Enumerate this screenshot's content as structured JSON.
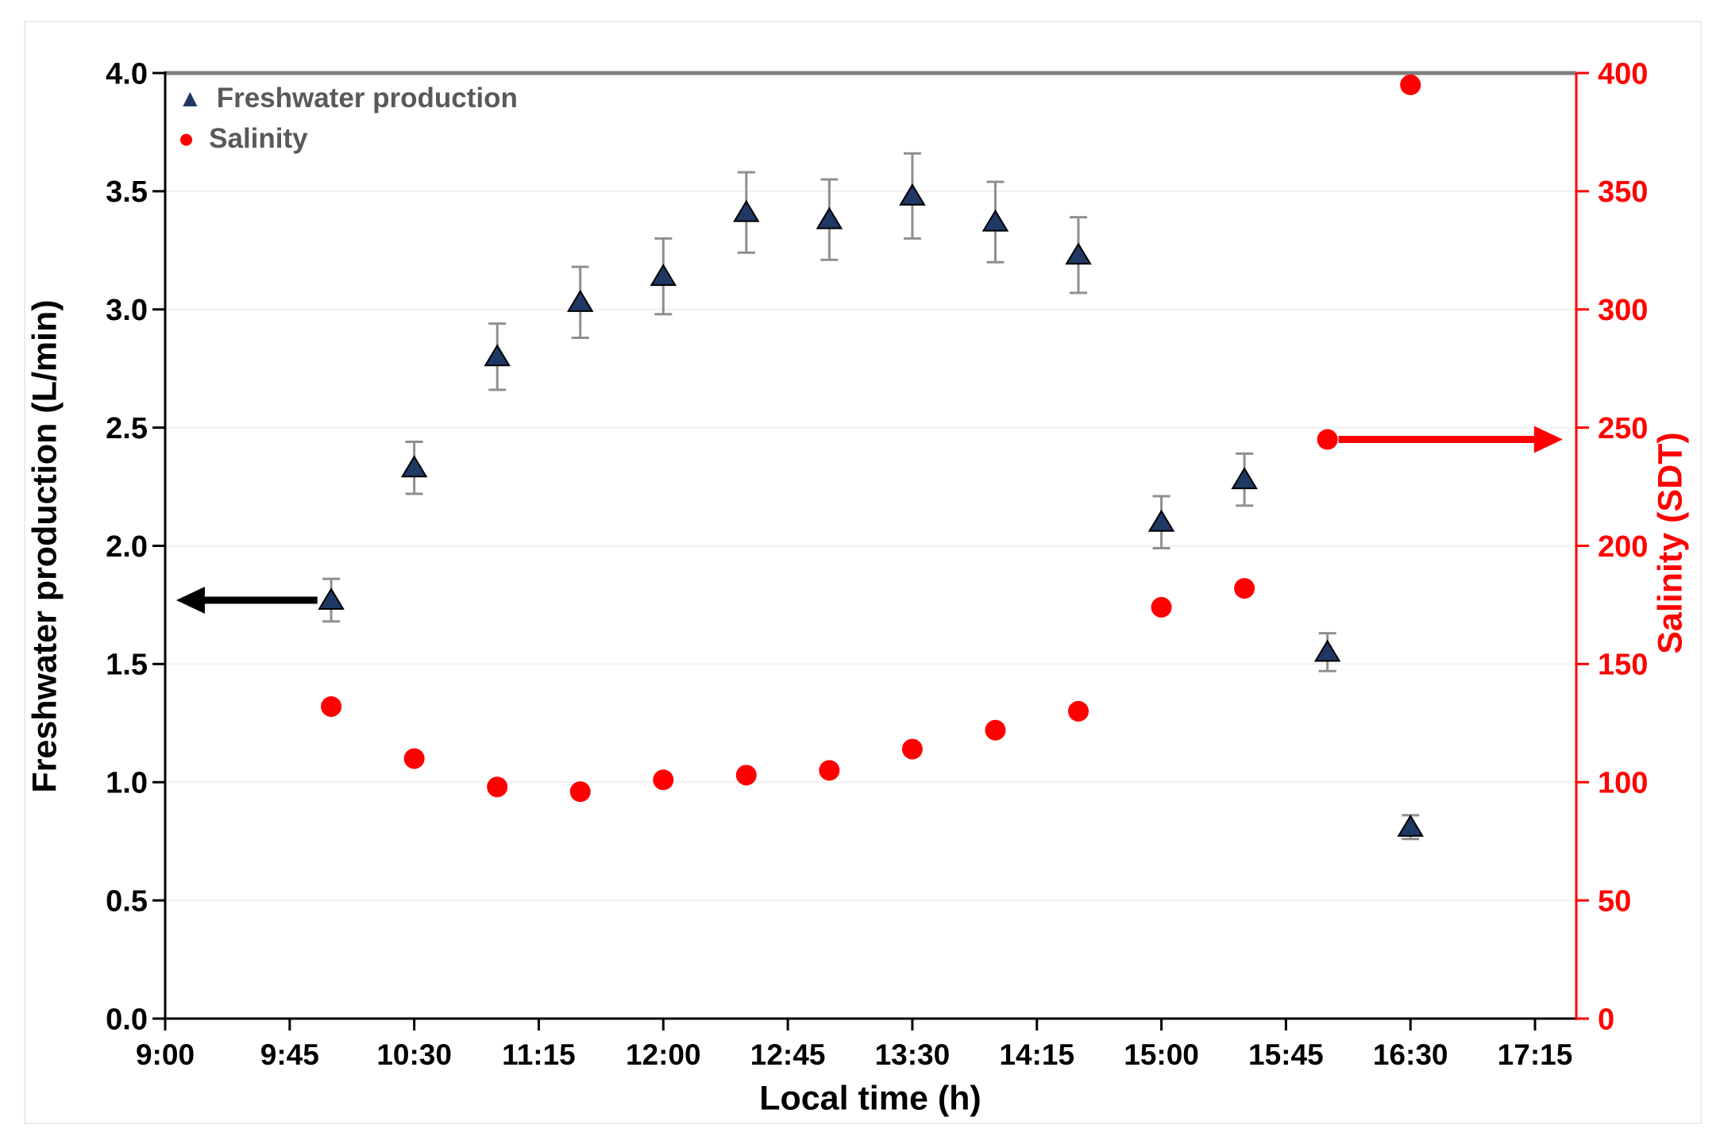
{
  "chart_data": {
    "type": "scatter",
    "title": "",
    "xlabel": "Local time (h)",
    "ylabel_left": "Freshwater production (L/min)",
    "ylabel_right": "Salinity (SDT)",
    "x_tick_labels": [
      "9:00",
      "9:45",
      "10:30",
      "11:15",
      "12:00",
      "12:45",
      "13:30",
      "14:15",
      "15:00",
      "15:45",
      "16:30",
      "17:15"
    ],
    "x_axis": {
      "start_time": "9:00",
      "end_time": "17:15",
      "tick_interval_minutes": 45
    },
    "y_left": {
      "min": 0.0,
      "max": 4.0,
      "step": 0.5,
      "tick_labels": [
        "0.0",
        "0.5",
        "1.0",
        "1.5",
        "2.0",
        "2.5",
        "3.0",
        "3.5",
        "4.0"
      ]
    },
    "y_right": {
      "min": 0,
      "max": 400,
      "step": 50,
      "tick_labels": [
        "0",
        "50",
        "100",
        "150",
        "200",
        "250",
        "300",
        "350",
        "400"
      ]
    },
    "grid": "horizontal-only",
    "legend": {
      "position": "top-left-inside",
      "items": [
        {
          "label": "Freshwater production",
          "marker": "triangle-icon",
          "glyph": "▲",
          "color": "#1f3864"
        },
        {
          "label": "Salinity",
          "marker": "circle-icon",
          "glyph": "●",
          "color": "#ff0000"
        }
      ]
    },
    "series": [
      {
        "name": "Freshwater production",
        "axis": "left",
        "marker": "triangle",
        "color": "#1f3864",
        "points": [
          {
            "time": "10:00",
            "value": 1.77,
            "error": 0.09
          },
          {
            "time": "10:30",
            "value": 2.33,
            "error": 0.11
          },
          {
            "time": "11:00",
            "value": 2.8,
            "error": 0.14
          },
          {
            "time": "11:30",
            "value": 3.03,
            "error": 0.15
          },
          {
            "time": "12:00",
            "value": 3.14,
            "error": 0.16
          },
          {
            "time": "12:30",
            "value": 3.41,
            "error": 0.17
          },
          {
            "time": "13:00",
            "value": 3.38,
            "error": 0.17
          },
          {
            "time": "13:30",
            "value": 3.48,
            "error": 0.18
          },
          {
            "time": "14:00",
            "value": 3.37,
            "error": 0.17
          },
          {
            "time": "14:30",
            "value": 3.23,
            "error": 0.16
          },
          {
            "time": "15:00",
            "value": 2.1,
            "error": 0.11
          },
          {
            "time": "15:30",
            "value": 2.28,
            "error": 0.11
          },
          {
            "time": "16:00",
            "value": 1.55,
            "error": 0.08
          },
          {
            "time": "16:30",
            "value": 0.81,
            "error": 0.05
          }
        ]
      },
      {
        "name": "Salinity",
        "axis": "right",
        "marker": "circle",
        "color": "#ff0000",
        "points": [
          {
            "time": "10:00",
            "value": 132
          },
          {
            "time": "10:30",
            "value": 110
          },
          {
            "time": "11:00",
            "value": 98
          },
          {
            "time": "11:30",
            "value": 96
          },
          {
            "time": "12:00",
            "value": 101
          },
          {
            "time": "12:30",
            "value": 103
          },
          {
            "time": "13:00",
            "value": 105
          },
          {
            "time": "13:30",
            "value": 114
          },
          {
            "time": "14:00",
            "value": 122
          },
          {
            "time": "14:30",
            "value": 130
          },
          {
            "time": "15:00",
            "value": 174
          },
          {
            "time": "15:30",
            "value": 182
          },
          {
            "time": "16:00",
            "value": 245
          },
          {
            "time": "16:30",
            "value": 395
          }
        ]
      }
    ],
    "annotations": [
      {
        "name": "left-axis-arrow",
        "type": "arrow",
        "color": "#000000",
        "axis": "left",
        "value": 1.77,
        "tail_time": "9:55",
        "tip_time": "9:04",
        "direction": "left"
      },
      {
        "name": "right-axis-arrow",
        "type": "arrow",
        "color": "#ff0000",
        "axis": "right",
        "value": 245,
        "tail_time": "16:04",
        "tip_time": "17:25",
        "direction": "right"
      }
    ],
    "colors": {
      "freshwater_marker": "#1f3864",
      "salinity_marker": "#ff0000",
      "left_axis": "#000000",
      "right_axis": "#ff0000",
      "top_border": "#7f7f7f",
      "gridline": "#f0f0f0",
      "error_bar": "#8f8f8f",
      "legend_text": "#595959"
    }
  }
}
